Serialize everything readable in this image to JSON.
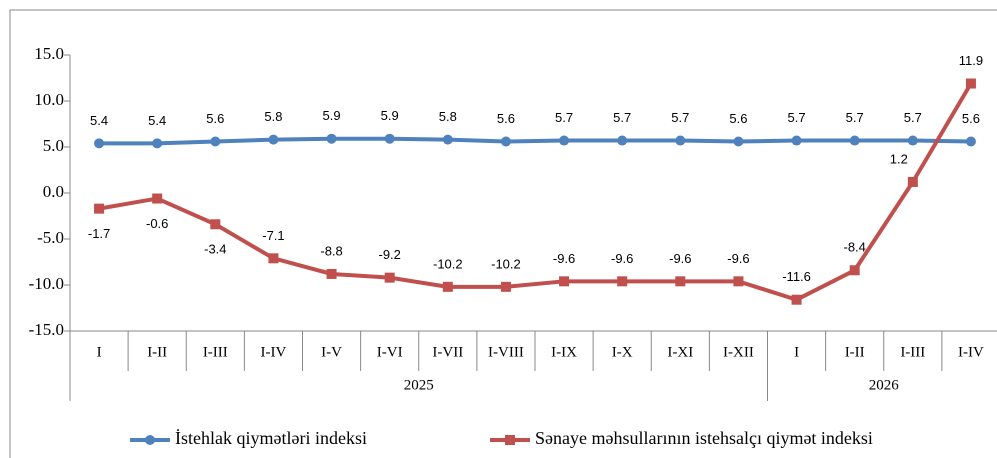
{
  "chart_data": {
    "type": "line",
    "category_groups": [
      {
        "label": "2025",
        "categories": [
          "I",
          "I-II",
          "I-III",
          "I-IV",
          "I-V",
          "I-VI",
          "I-VII",
          "I-VIII",
          "I-IX",
          "I-X",
          "I-XI",
          "I-XII"
        ]
      },
      {
        "label": "2026",
        "categories": [
          "I",
          "I-II",
          "I-III",
          "I-IV"
        ]
      }
    ],
    "series": [
      {
        "name": "İstehlak qiymətləri indeksi",
        "color": "#4f81bd",
        "values": [
          5.4,
          5.4,
          5.6,
          5.8,
          5.9,
          5.9,
          5.8,
          5.6,
          5.7,
          5.7,
          5.7,
          5.6,
          5.7,
          5.7,
          5.7,
          5.6
        ]
      },
      {
        "name": "Sənaye məhsullarının istehsalçı qiymət indeksi",
        "color": "#c0504d",
        "values": [
          -1.7,
          -0.6,
          -3.4,
          -7.1,
          -8.8,
          -9.2,
          -10.2,
          -10.2,
          -9.6,
          -9.6,
          -9.6,
          -9.6,
          -11.6,
          -8.4,
          1.2,
          11.9
        ]
      }
    ],
    "ylim": [
      -15,
      15
    ],
    "yticks": [
      {
        "value": -15,
        "label": "-15.0"
      },
      {
        "value": -10,
        "label": "-10.0"
      },
      {
        "value": -5,
        "label": "-5.0"
      },
      {
        "value": 0,
        "label": "0.0"
      },
      {
        "value": 5,
        "label": "5.0"
      },
      {
        "value": 10,
        "label": "10.0"
      },
      {
        "value": 15,
        "label": "15.0"
      }
    ],
    "legend": "bottom"
  }
}
